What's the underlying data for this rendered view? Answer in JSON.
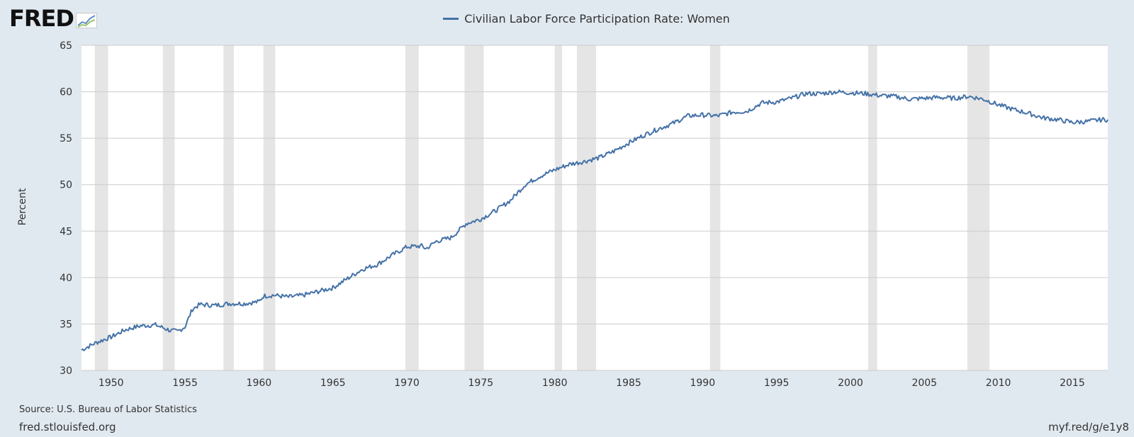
{
  "header": {
    "logo_text": "FRED",
    "legend_label": "Civilian Labor Force Participation Rate: Women"
  },
  "footer": {
    "source": "Source: U.S. Bureau of Labor Statistics",
    "site": "fred.stlouisfed.org",
    "short_url": "myf.red/g/e1y8"
  },
  "colors": {
    "series": "#4572a7",
    "recession": "#e5e5e5",
    "background": "#e1e9f0",
    "plot": "#ffffff",
    "grid": "#cccccc"
  },
  "chart_data": {
    "type": "line",
    "title": "",
    "xlabel": "",
    "ylabel": "Percent",
    "xlim": [
      1948.0,
      2017.4
    ],
    "ylim": [
      30,
      65
    ],
    "y_ticks": [
      30,
      35,
      40,
      45,
      50,
      55,
      60,
      65
    ],
    "x_ticks": [
      1950,
      1955,
      1960,
      1965,
      1970,
      1975,
      1980,
      1985,
      1990,
      1995,
      2000,
      2005,
      2010,
      2015
    ],
    "grid": "horizontal",
    "legend_position": "top-center",
    "recessions": [
      [
        1948.9,
        1949.8
      ],
      [
        1953.5,
        1954.3
      ],
      [
        1957.6,
        1958.3
      ],
      [
        1960.3,
        1961.1
      ],
      [
        1969.9,
        1970.8
      ],
      [
        1973.9,
        1975.2
      ],
      [
        1980.0,
        1980.5
      ],
      [
        1981.5,
        1982.8
      ],
      [
        1990.5,
        1991.2
      ],
      [
        2001.2,
        2001.8
      ],
      [
        2007.9,
        2009.4
      ]
    ],
    "series": [
      {
        "name": "Civilian Labor Force Participation Rate: Women",
        "x": [
          1948.0,
          1949.0,
          1950.0,
          1951.0,
          1952.0,
          1953.0,
          1954.0,
          1954.5,
          1955.0,
          1955.5,
          1956.0,
          1957.0,
          1958.0,
          1959.0,
          1960.0,
          1960.3,
          1961.0,
          1962.0,
          1963.0,
          1964.0,
          1965.0,
          1966.0,
          1967.0,
          1968.0,
          1969.0,
          1970.0,
          1971.0,
          1971.3,
          1972.0,
          1973.0,
          1974.0,
          1975.0,
          1976.0,
          1977.0,
          1978.0,
          1979.0,
          1980.0,
          1981.0,
          1982.0,
          1983.0,
          1984.0,
          1985.0,
          1986.0,
          1987.0,
          1988.0,
          1989.0,
          1990.0,
          1991.0,
          1992.0,
          1993.0,
          1994.0,
          1995.0,
          1996.0,
          1997.0,
          1998.0,
          1999.0,
          2000.0,
          2001.0,
          2002.0,
          2003.0,
          2004.0,
          2005.0,
          2006.0,
          2007.0,
          2008.0,
          2009.0,
          2010.0,
          2011.0,
          2012.0,
          2013.0,
          2014.0,
          2015.0,
          2016.0,
          2017.0,
          2017.4
        ],
        "values": [
          32.2,
          33.0,
          33.6,
          34.4,
          34.8,
          34.9,
          34.3,
          34.2,
          34.7,
          36.6,
          37.1,
          37.0,
          37.2,
          37.2,
          37.4,
          38.0,
          38.1,
          37.9,
          38.1,
          38.5,
          38.9,
          39.9,
          40.9,
          41.4,
          42.4,
          43.3,
          43.4,
          43.1,
          43.9,
          44.3,
          45.8,
          46.3,
          47.2,
          48.3,
          50.0,
          50.9,
          51.6,
          52.2,
          52.5,
          52.9,
          53.6,
          54.5,
          55.3,
          56.0,
          56.6,
          57.4,
          57.5,
          57.4,
          57.8,
          57.9,
          58.8,
          58.9,
          59.3,
          59.8,
          59.8,
          60.0,
          59.9,
          59.8,
          59.6,
          59.5,
          59.2,
          59.3,
          59.4,
          59.3,
          59.5,
          59.2,
          58.6,
          58.1,
          57.7,
          57.2,
          57.0,
          56.7,
          56.8,
          57.0,
          57.0
        ]
      }
    ]
  }
}
